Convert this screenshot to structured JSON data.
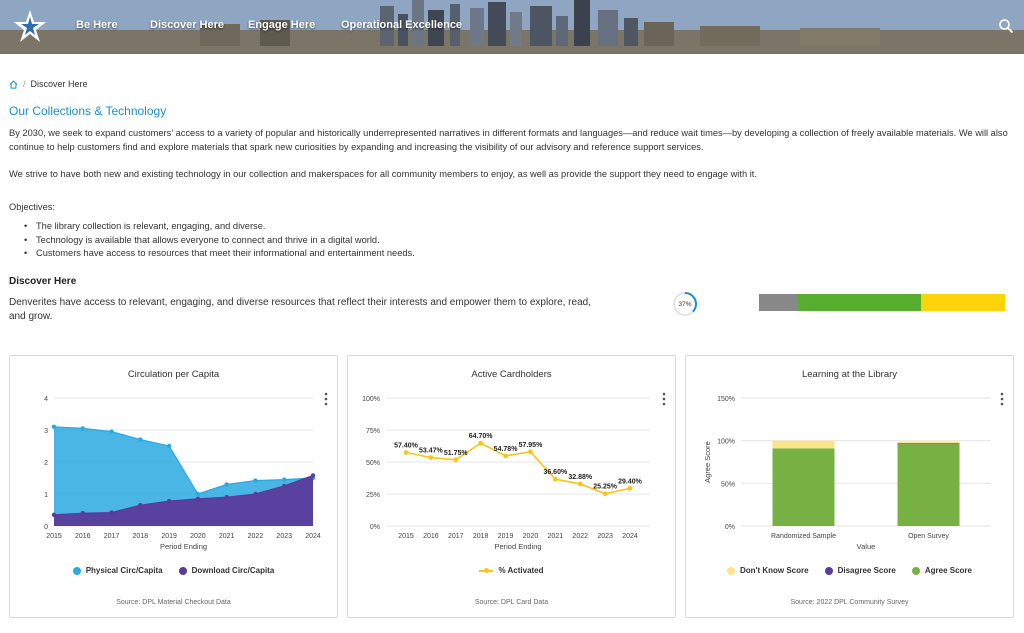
{
  "nav": {
    "items": [
      "Be Here",
      "Discover Here",
      "Engage Here",
      "Operational Excellence"
    ]
  },
  "breadcrumb": {
    "current": "Discover Here"
  },
  "page_title": "Our Collections & Technology",
  "paragraphs": [
    "By 2030, we seek to expand customers’ access to a variety of popular and historically underrepresented narratives in different formats and languages—and reduce wait times—by developing a collection of freely available materials. We will also continue to help customers find and explore materials that spark new curiosities by expanding and increasing the visibility of our advisory and reference support services.",
    "We strive to have both new and existing technology in our collection and makerspaces for all community members to enjoy, as well as provide the support they need to engage with it."
  ],
  "objectives": {
    "label": "Objectives:",
    "items": [
      "The library collection is relevant, engaging, and diverse.",
      "Technology is available that allows everyone to connect and thrive in a digital world.",
      "Customers have access to resources that meet their informational and entertainment needs."
    ]
  },
  "section": {
    "title": "Discover Here",
    "description": "Denverites have access to relevant, engaging, and diverse resources that  reflect their interests and empower them to explore, read, and grow.",
    "progress_label": "37%",
    "progress_value": 0.37,
    "status_segments": [
      {
        "fraction": 0.16,
        "color": "#888888"
      },
      {
        "fraction": 0.5,
        "color": "#56ad2e"
      },
      {
        "fraction": 0.34,
        "color": "#fdd30a"
      }
    ]
  },
  "colors": {
    "physical": "#29a9e1",
    "download": "#5b3b9b",
    "activated": "#fbc515",
    "dont_know": "#fce488",
    "disagree": "#5b3b9b",
    "agree": "#77b043",
    "accent": "#1a8fd1"
  },
  "chart_data": [
    {
      "type": "area",
      "title": "Circulation per Capita",
      "xlabel": "Period Ending",
      "ylabel": "",
      "x": [
        "2015",
        "2016",
        "2017",
        "2018",
        "2019",
        "2020",
        "2021",
        "2022",
        "2023",
        "2024"
      ],
      "ylim": [
        0,
        4
      ],
      "yticks": [
        "0",
        "1",
        "2",
        "3",
        "4"
      ],
      "series": [
        {
          "name": "Physical Circ/Capita",
          "values": [
            3.1,
            3.05,
            2.95,
            2.7,
            2.5,
            1.0,
            1.3,
            1.42,
            1.45,
            1.5
          ]
        },
        {
          "name": "Download Circ/Capita",
          "values": [
            0.35,
            0.4,
            0.42,
            0.65,
            0.78,
            0.85,
            0.9,
            1.0,
            1.25,
            1.58
          ]
        }
      ],
      "source": "Source: DPL Material Checkout Data"
    },
    {
      "type": "line",
      "title": "Active Cardholders",
      "xlabel": "Period Ending",
      "ylabel": "",
      "x": [
        "2015",
        "2016",
        "2017",
        "2018",
        "2019",
        "2020",
        "2021",
        "2022",
        "2023",
        "2024"
      ],
      "ylim": [
        0,
        100
      ],
      "yticks": [
        "0%",
        "25%",
        "50%",
        "75%",
        "100%"
      ],
      "series": [
        {
          "name": "% Activated",
          "values": [
            57.4,
            53.47,
            51.75,
            64.7,
            54.78,
            57.95,
            36.6,
            32.88,
            25.25,
            29.4
          ],
          "labels": [
            "57.40%",
            "53.47%",
            "51.75%",
            "64.70%",
            "54.78%",
            "57.95%",
            "36.60%",
            "32.88%",
            "25.25%",
            "29.40%"
          ]
        }
      ],
      "source": "Source: DPL Card Data"
    },
    {
      "type": "bar",
      "title": "Learning at the Library",
      "xlabel": "Value",
      "ylabel": "Agree Score",
      "categories": [
        "Randomized Sample",
        "Open Survey"
      ],
      "ylim": [
        0,
        150
      ],
      "yticks": [
        "0%",
        "50%",
        "100%",
        "150%"
      ],
      "stacked": true,
      "series": [
        {
          "name": "Agree Score",
          "values": [
            91,
            96
          ]
        },
        {
          "name": "Disagree Score",
          "values": [
            0,
            1
          ]
        },
        {
          "name": "Don't Know Score",
          "values": [
            9,
            2
          ]
        }
      ],
      "legend_order": [
        "Don't Know Score",
        "Disagree Score",
        "Agree Score"
      ],
      "source": "Source: 2022 DPL Community Survey"
    }
  ]
}
